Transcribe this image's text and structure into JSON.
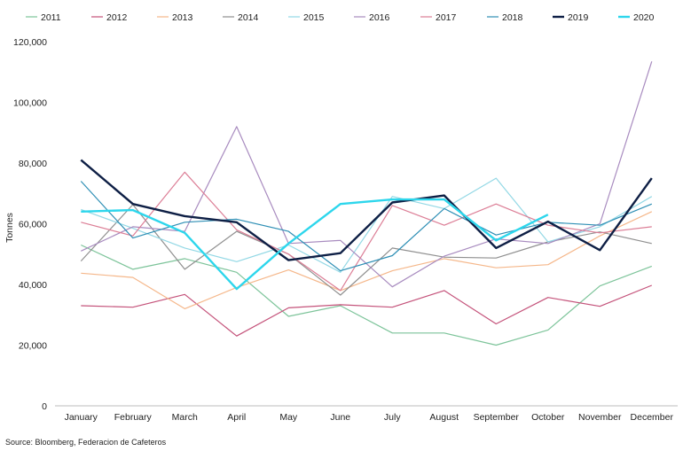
{
  "chart_data": {
    "type": "line",
    "title": "",
    "xlabel": "",
    "ylabel": "Tonnes",
    "ylim": [
      0,
      120000
    ],
    "yticks": [
      0,
      20000,
      40000,
      60000,
      80000,
      100000,
      120000
    ],
    "ytick_labels": [
      "0",
      "20,000",
      "40,000",
      "60,000",
      "80,000",
      "100,000",
      "120,000"
    ],
    "grid": false,
    "legend_position": "top",
    "categories": [
      "January",
      "February",
      "March",
      "April",
      "May",
      "June",
      "July",
      "August",
      "September",
      "October",
      "November",
      "December"
    ],
    "series": [
      {
        "name": "2011",
        "color": "#7dc49a",
        "width": 1.2,
        "values": [
          53000,
          45000,
          48500,
          44000,
          29500,
          33000,
          24000,
          24000,
          20000,
          25000,
          39500,
          46000
        ]
      },
      {
        "name": "2012",
        "color": "#c4527a",
        "width": 1.2,
        "values": [
          33000,
          32500,
          36700,
          23000,
          32300,
          33300,
          32500,
          38000,
          27000,
          35700,
          32800,
          39700
        ]
      },
      {
        "name": "2013",
        "color": "#f5b78a",
        "width": 1.2,
        "values": [
          43700,
          42300,
          32000,
          39000,
          44800,
          38000,
          44500,
          48500,
          45500,
          46500,
          56000,
          64000
        ]
      },
      {
        "name": "2014",
        "color": "#8f8f8f",
        "width": 1.2,
        "values": [
          47700,
          66300,
          45000,
          57500,
          50000,
          36500,
          52000,
          49000,
          48700,
          54000,
          57300,
          53500
        ]
      },
      {
        "name": "2015",
        "color": "#93d8e5",
        "width": 1.2,
        "values": [
          64700,
          58500,
          52000,
          47500,
          53000,
          44000,
          69000,
          65000,
          75000,
          54000,
          59000,
          69000
        ]
      },
      {
        "name": "2016",
        "color": "#a88bbf",
        "width": 1.2,
        "values": [
          51000,
          59000,
          57500,
          92000,
          53500,
          54500,
          39200,
          49300,
          55000,
          53500,
          60000,
          113500
        ]
      },
      {
        "name": "2017",
        "color": "#dc7e96",
        "width": 1.2,
        "values": [
          60500,
          56000,
          77000,
          58000,
          50000,
          38000,
          66000,
          59500,
          66500,
          59500,
          57000,
          59000
        ]
      },
      {
        "name": "2018",
        "color": "#2e8fb5",
        "width": 1.2,
        "values": [
          74000,
          55300,
          60500,
          61500,
          57500,
          44500,
          49500,
          65000,
          56300,
          60500,
          59500,
          66500
        ]
      },
      {
        "name": "2019",
        "color": "#0e1f45",
        "width": 2.4,
        "values": [
          81000,
          66500,
          62500,
          60500,
          48000,
          50300,
          67000,
          69300,
          52000,
          60700,
          51300,
          75000
        ]
      },
      {
        "name": "2020",
        "color": "#2dd6ec",
        "width": 2.4,
        "values": [
          64000,
          64500,
          57000,
          38500,
          53500,
          66500,
          68000,
          68000,
          54500,
          63000,
          null,
          null
        ]
      }
    ],
    "source": "Source: Bloomberg, Federacion de Cafeteros"
  }
}
